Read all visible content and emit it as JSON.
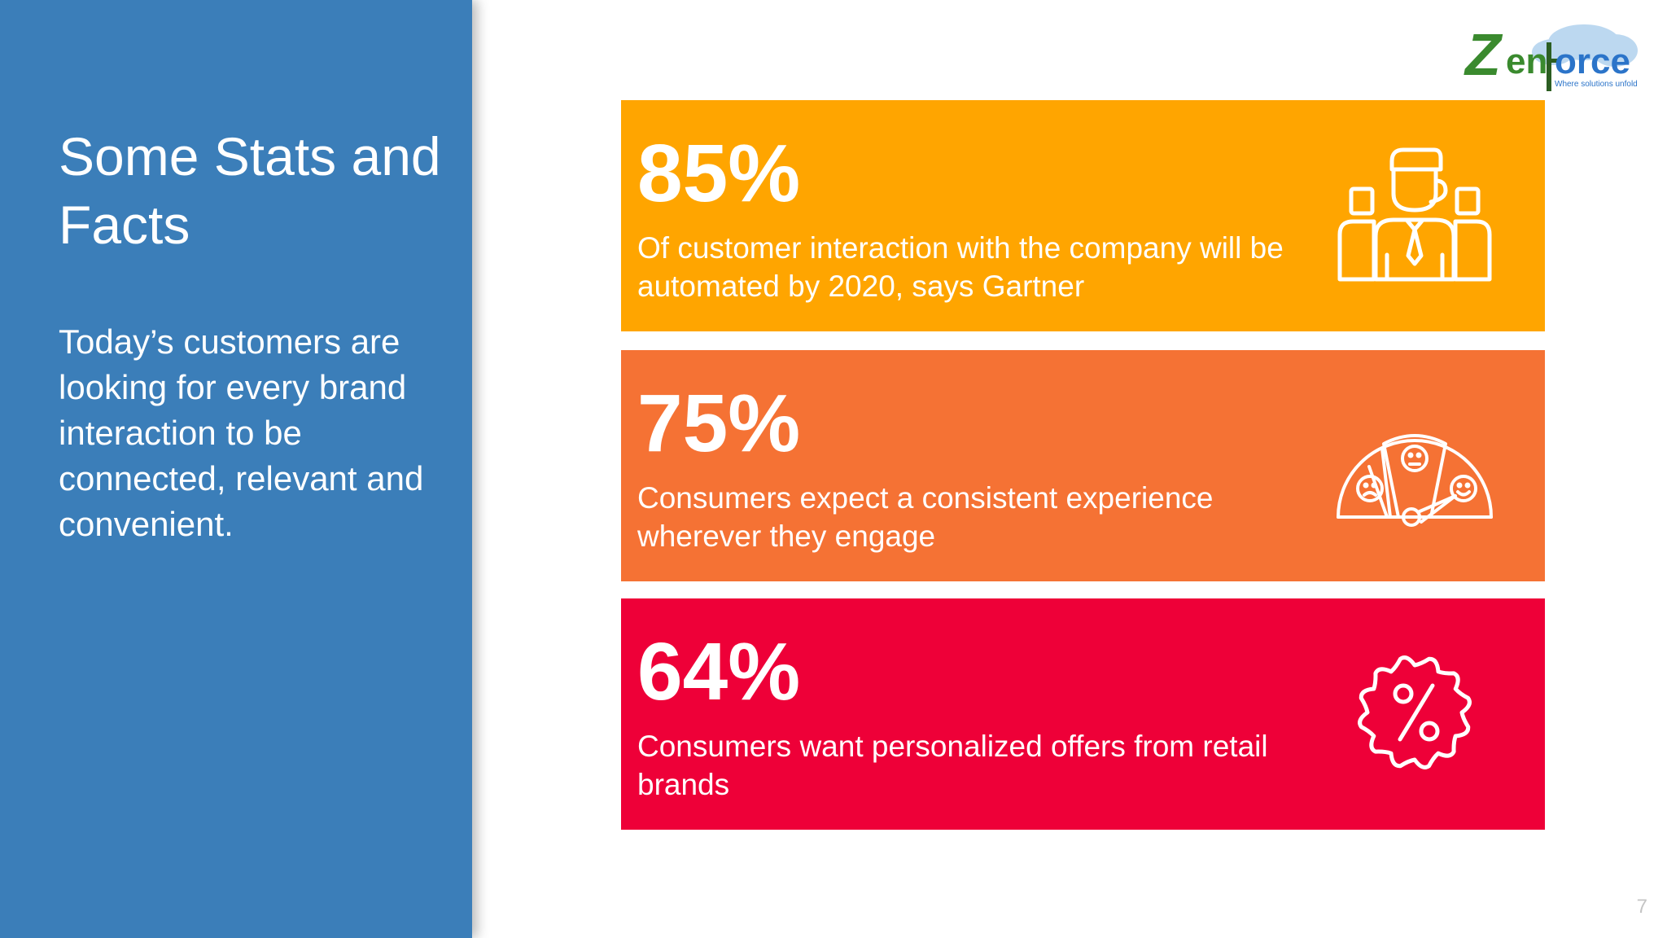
{
  "sidebar": {
    "title": "Some Stats and Facts",
    "description": "Today’s customers are looking for every brand interaction to be connected, relevant and convenient."
  },
  "logo": {
    "text_z": "Z",
    "text_en": "en",
    "text_orce": "orce",
    "tagline": "Where solutions unfold",
    "colors": {
      "green": "#3a8a2e",
      "blue": "#2b74c9",
      "cloud": "#bcd8f0"
    }
  },
  "stats": [
    {
      "value": "85%",
      "text": "Of customer interaction with the company will be automated by 2020, says Gartner",
      "color": "#ffa500",
      "icon": "team-icon"
    },
    {
      "value": "75%",
      "text": "Consumers expect a consistent experience wherever they engage",
      "color": "#f57234",
      "icon": "satisfaction-meter-icon"
    },
    {
      "value": "64%",
      "text": "Consumers want personalized offers from retail brands",
      "color": "#ee0038",
      "icon": "discount-badge-icon"
    }
  ],
  "page_number": "7"
}
